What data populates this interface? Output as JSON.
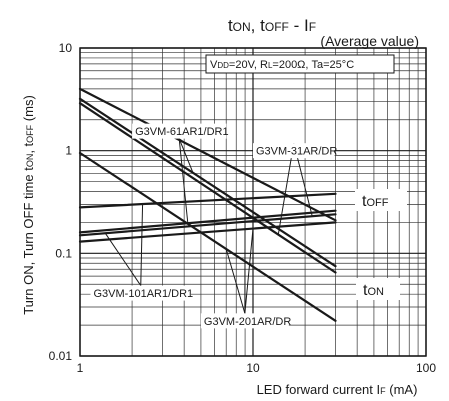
{
  "chart_data": {
    "type": "line",
    "title": {
      "t1": "t",
      "t1sub": "ON",
      "sep1": ", ",
      "t2": "t",
      "t2sub": "OFF",
      "sep2": " - I",
      "t3sub": "F"
    },
    "subtitle": "(Average value)",
    "conditions": {
      "p1": "V",
      "p1sub": "DD",
      "p2": "=20V, R",
      "p2sub": "L",
      "p3": "=200Ω, Ta=25°C"
    },
    "xlabel": {
      "main": "LED forward current I",
      "sub": "F",
      "tail": " (mA)"
    },
    "ylabel": {
      "a": "Turn ON, Turn OFF time t",
      "asub": "ON",
      "b": ", t",
      "bsub": "OFF",
      "c": " (ms)"
    },
    "x_scale": "log",
    "y_scale": "log",
    "xlim": [
      1,
      100
    ],
    "ylim": [
      0.01,
      10
    ],
    "x_ticks": [
      {
        "value": 1,
        "label": "1"
      },
      {
        "value": 10,
        "label": "10"
      },
      {
        "value": 100,
        "label": "100"
      }
    ],
    "y_ticks": [
      {
        "value": 0.01,
        "label": "0.01"
      },
      {
        "value": 0.1,
        "label": "0.1"
      },
      {
        "value": 1,
        "label": "1"
      },
      {
        "value": 10,
        "label": "10"
      }
    ],
    "grid": true,
    "series": [
      {
        "group": "toff",
        "x": [
          1,
          30
        ],
        "y": [
          0.28,
          0.38
        ]
      },
      {
        "group": "toff",
        "x": [
          1,
          30
        ],
        "y": [
          0.16,
          0.26
        ]
      },
      {
        "group": "toff",
        "x": [
          1,
          30
        ],
        "y": [
          0.15,
          0.24
        ]
      },
      {
        "group": "toff",
        "x": [
          1,
          30
        ],
        "y": [
          0.13,
          0.2
        ]
      },
      {
        "group": "ton",
        "x": [
          1,
          30
        ],
        "y": [
          4.0,
          0.21
        ]
      },
      {
        "group": "ton",
        "x": [
          1,
          30
        ],
        "y": [
          3.2,
          0.075
        ]
      },
      {
        "group": "ton",
        "x": [
          1,
          30
        ],
        "y": [
          2.9,
          0.065
        ]
      },
      {
        "group": "ton",
        "x": [
          1,
          30
        ],
        "y": [
          0.95,
          0.022
        ]
      }
    ],
    "annotations": [
      {
        "text": "G3VM-61AR1/DR1",
        "x": 2.0,
        "y": 1.55
      },
      {
        "text": "G3VM-31AR/DR",
        "x": 10.0,
        "y": 1.0
      },
      {
        "text": "G3VM-101AR1/DR1",
        "x": 1.15,
        "y": 0.041
      },
      {
        "text": "G3VM-201AR/DR",
        "x": 5.0,
        "y": 0.022
      }
    ],
    "region_labels": {
      "toff": {
        "main": "t",
        "sub": "OFF"
      },
      "ton": {
        "main": "t",
        "sub": "ON"
      }
    }
  }
}
